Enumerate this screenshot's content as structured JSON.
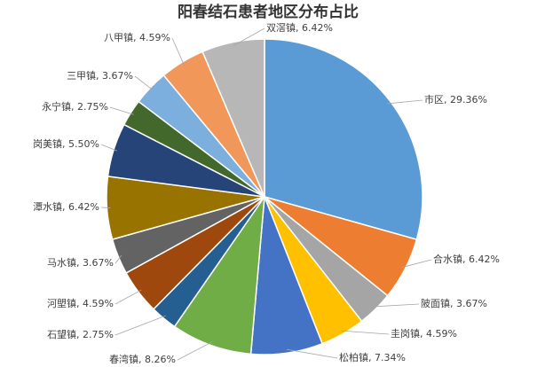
{
  "chart_data": {
    "type": "pie",
    "title": "阳春结石患者地区分布占比",
    "values": [
      29.36,
      6.42,
      3.67,
      4.59,
      7.34,
      8.26,
      2.75,
      4.59,
      3.67,
      6.42,
      5.5,
      2.75,
      3.67,
      4.59,
      6.42
    ],
    "value_labels": [
      "市区, 29.36%",
      "合水镇, 6.42%",
      "陂面镇, 3.67%",
      "圭岗镇, 4.59%",
      "松柏镇, 7.34%",
      "春湾镇, 8.26%",
      "石望镇, 2.75%",
      "河塱镇, 4.59%",
      "马水镇, 3.67%",
      "潭水镇, 6.42%",
      "岗美镇, 5.50%",
      "永宁镇, 2.75%",
      "三甲镇, 3.67%",
      "八甲镇, 4.59%",
      "双滘镇, 6.42%"
    ],
    "colors": [
      "#5b9bd5",
      "#ed7d31",
      "#a5a5a5",
      "#ffc000",
      "#4472c4",
      "#70ad47",
      "#255e91",
      "#9e480e",
      "#636363",
      "#997300",
      "#264478",
      "#43682b",
      "#7cafdd",
      "#f1975a",
      "#b7b7b7"
    ]
  }
}
